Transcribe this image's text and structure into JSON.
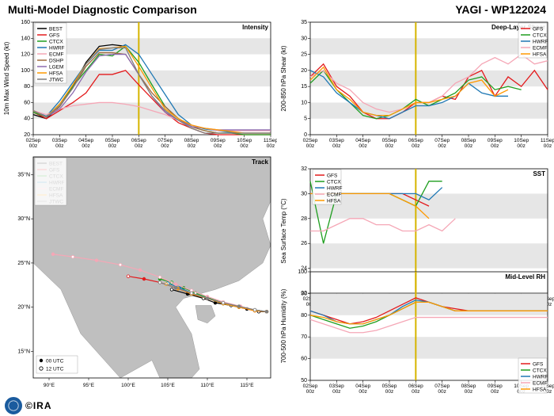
{
  "header": {
    "title": "Multi-Model Diagnostic Comparison",
    "storm": "YAGI - WP122024"
  },
  "colors": {
    "BEST": "#000000",
    "GFS": "#e31a1c",
    "CTCX": "#1f9e1f",
    "HWRF": "#1f78b4",
    "ECMF": "#f5a7b6",
    "DSHP": "#a06a3c",
    "LGEM": "#8c6bb1",
    "HFSA": "#ff9900",
    "JTWC": "#7f7f7f",
    "vline": "#d6b400",
    "grid": "#d0d0d0",
    "band": "#e6e6e6",
    "land": "#bfbfbf",
    "sea": "#ffffff"
  },
  "x": {
    "labels": [
      "02Sep\n00z",
      "03Sep\n00z",
      "04Sep\n00z",
      "05Sep\n00z",
      "06Sep\n00z",
      "07Sep\n00z",
      "08Sep\n00z",
      "09Sep\n00z",
      "10Sep\n00z",
      "11Sep\n00z"
    ],
    "vline_idx": 4.0
  },
  "intensity": {
    "title": "Intensity",
    "ylabel": "10m Max Wind Speed (kt)",
    "ylim": [
      20,
      160
    ],
    "ytick_step": 20,
    "legend": [
      "BEST",
      "GFS",
      "CTCX",
      "HWRF",
      "ECMF",
      "DSHP",
      "LGEM",
      "HFSA",
      "JTWC"
    ],
    "series": {
      "BEST": [
        45,
        40,
        55,
        80,
        110,
        130,
        132,
        130,
        null,
        null,
        null,
        null,
        null,
        null,
        null,
        null,
        null,
        null,
        null
      ],
      "GFS": [
        48,
        40,
        50,
        60,
        72,
        95,
        95,
        100,
        82,
        65,
        48,
        35,
        28,
        22,
        20,
        20,
        20,
        20,
        20
      ],
      "CTCX": [
        48,
        42,
        58,
        80,
        100,
        120,
        118,
        130,
        110,
        82,
        55,
        40,
        30,
        25,
        22,
        22,
        20,
        20,
        20
      ],
      "HWRF": [
        50,
        43,
        62,
        85,
        108,
        125,
        125,
        132,
        120,
        95,
        70,
        45,
        32,
        27,
        25,
        23,
        22,
        22,
        22
      ],
      "ECMF": [
        50,
        45,
        52,
        56,
        58,
        60,
        60,
        58,
        55,
        50,
        45,
        38,
        32,
        28,
        25,
        25,
        25,
        25,
        25
      ],
      "DSHP": [
        50,
        42,
        55,
        78,
        105,
        122,
        122,
        120,
        95,
        72,
        55,
        40,
        30,
        25,
        22,
        22,
        22,
        22,
        22
      ],
      "LGEM": [
        50,
        42,
        52,
        72,
        98,
        118,
        120,
        120,
        95,
        68,
        48,
        38,
        30,
        28,
        26,
        26,
        26,
        26,
        26
      ],
      "HFSA": [
        50,
        42,
        58,
        82,
        108,
        127,
        128,
        130,
        105,
        78,
        52,
        40,
        32,
        28,
        26,
        24,
        22,
        22,
        22
      ],
      "JTWC": [
        50,
        42,
        56,
        78,
        108,
        126,
        128,
        128,
        95,
        68,
        50,
        38,
        28,
        22,
        22,
        22,
        22,
        22,
        22
      ]
    }
  },
  "shear": {
    "title": "Deep-Layer Shear",
    "ylabel": "200-850 hPa Shear (kt)",
    "ylim": [
      0,
      35
    ],
    "yticks": [
      0,
      5,
      10,
      15,
      20,
      25,
      30,
      35
    ],
    "legend": [
      "GFS",
      "CTCX",
      "HWRF",
      "ECMF",
      "HFSA"
    ],
    "series": {
      "GFS": [
        18,
        22,
        15,
        12,
        7,
        5,
        5,
        7,
        10,
        10,
        12,
        11,
        18,
        20,
        12,
        18,
        15,
        20,
        14
      ],
      "CTCX": [
        16,
        20,
        14,
        10,
        6,
        5,
        6,
        8,
        11,
        9,
        11,
        13,
        17,
        18,
        14,
        15,
        14,
        null,
        null
      ],
      "HWRF": [
        20,
        18,
        13,
        10,
        7,
        6,
        5,
        7,
        9,
        9,
        10,
        12,
        16,
        13,
        12,
        12,
        null,
        null,
        null
      ],
      "ECMF": [
        18,
        20,
        16,
        14,
        10,
        8,
        7,
        8,
        10,
        10,
        12,
        16,
        18,
        22,
        24,
        22,
        25,
        22,
        23
      ],
      "HFSA": [
        17,
        21,
        14,
        11,
        7,
        6,
        6,
        8,
        10,
        10,
        11,
        12,
        16,
        17,
        12,
        14,
        null,
        null,
        null
      ]
    }
  },
  "sst": {
    "title": "SST",
    "ylabel": "Sea Surface Temp (°C)",
    "ylim": [
      22,
      32
    ],
    "yticks": [
      22,
      24,
      26,
      28,
      30,
      32
    ],
    "legend": [
      "GFS",
      "CTCX",
      "HWRF",
      "ECMF",
      "HFSA"
    ],
    "series": {
      "GFS": [
        30,
        30,
        30,
        30,
        30,
        30,
        30,
        30,
        29.5,
        29,
        null,
        null,
        null,
        null,
        null,
        null,
        null,
        null,
        null
      ],
      "CTCX": [
        31,
        26,
        30,
        30,
        30,
        30,
        30,
        29.5,
        29,
        31,
        31,
        null,
        null,
        null,
        null,
        null,
        null,
        null,
        null
      ],
      "HWRF": [
        30,
        30,
        30,
        30,
        30,
        30,
        30,
        30,
        30,
        29.5,
        30.5,
        null,
        null,
        null,
        null,
        null,
        null,
        null,
        null
      ],
      "ECMF": [
        27,
        27,
        27.5,
        28,
        28,
        27.5,
        27.5,
        27,
        27,
        27.5,
        27,
        28,
        null,
        null,
        null,
        null,
        null,
        null,
        null
      ],
      "HFSA": [
        30,
        30,
        30,
        30,
        30,
        30,
        30,
        29.5,
        29,
        28,
        null,
        null,
        null,
        null,
        null,
        null,
        null,
        null,
        null
      ]
    }
  },
  "rh": {
    "title": "Mid-Level RH",
    "ylabel": "700-500 hPa Humidity (%)",
    "ylim": [
      50,
      100
    ],
    "yticks": [
      50,
      60,
      70,
      80,
      90,
      100
    ],
    "legend": [
      "GFS",
      "CTCX",
      "HWRF",
      "ECMF",
      "HFSA"
    ],
    "series": {
      "GFS": [
        82,
        80,
        78,
        76,
        77,
        79,
        82,
        85,
        88,
        86,
        84,
        83,
        82,
        82,
        82,
        82,
        82,
        82,
        82
      ],
      "CTCX": [
        80,
        78,
        76,
        74,
        75,
        77,
        80,
        83,
        86,
        86,
        84,
        82,
        82,
        82,
        82,
        82,
        82,
        82,
        82
      ],
      "HWRF": [
        82,
        80,
        77,
        76,
        76,
        78,
        80,
        84,
        87,
        86,
        84,
        82,
        82,
        82,
        82,
        82,
        82,
        82,
        82
      ],
      "ECMF": [
        78,
        76,
        74,
        72,
        72,
        73,
        75,
        77,
        79,
        79,
        79,
        79,
        79,
        79,
        79,
        79,
        79,
        79,
        79
      ],
      "HFSA": [
        80,
        79,
        77,
        76,
        76,
        78,
        80,
        83,
        86,
        86,
        84,
        82,
        82,
        82,
        82,
        82,
        82,
        82,
        82
      ]
    }
  },
  "track": {
    "title": "Track",
    "xlabel": "",
    "ylabel": "",
    "xlim": [
      88,
      118
    ],
    "ylim": [
      12,
      37
    ],
    "xticks": [
      90,
      95,
      100,
      105,
      110,
      115
    ],
    "yticks": [
      15,
      20,
      25,
      30,
      35
    ],
    "legend": [
      "BEST",
      "GFS",
      "CTCX",
      "HWRF",
      "ECMF",
      "HFSA",
      "JTWC"
    ],
    "pt_legend": [
      "00 UTC",
      "12 UTC"
    ],
    "paths": {
      "BEST": [
        [
          117.5,
          19.5
        ],
        [
          116.5,
          19.5
        ],
        [
          115,
          19.8
        ],
        [
          113,
          20.2
        ],
        [
          111,
          20.5
        ],
        [
          109.5,
          21
        ],
        [
          107.5,
          21.5
        ],
        [
          105.5,
          22
        ]
      ],
      "GFS": [
        [
          117.5,
          19.5
        ],
        [
          116,
          19.6
        ],
        [
          114,
          20.0
        ],
        [
          112,
          20.4
        ],
        [
          110,
          21
        ],
        [
          108,
          21.5
        ],
        [
          106,
          22.2
        ],
        [
          104,
          22.8
        ],
        [
          102,
          23.2
        ],
        [
          100,
          23.5
        ]
      ],
      "CTCX": [
        [
          117.5,
          19.5
        ],
        [
          116,
          19.7
        ],
        [
          114,
          20.1
        ],
        [
          112,
          20.5
        ],
        [
          110,
          21.1
        ],
        [
          108.5,
          21.6
        ],
        [
          107,
          22.2
        ],
        [
          105.5,
          22.8
        ],
        [
          104,
          23.2
        ]
      ],
      "HWRF": [
        [
          117.5,
          19.5
        ],
        [
          116,
          19.7
        ],
        [
          114,
          20.0
        ],
        [
          112,
          20.4
        ],
        [
          110,
          21.0
        ],
        [
          108,
          21.6
        ],
        [
          106.5,
          22.2
        ],
        [
          105,
          22.7
        ]
      ],
      "ECMF": [
        [
          117.5,
          19.5
        ],
        [
          116,
          19.7
        ],
        [
          114.2,
          20.1
        ],
        [
          112,
          20.6
        ],
        [
          110,
          21.2
        ],
        [
          108,
          21.9
        ],
        [
          106,
          22.6
        ],
        [
          104,
          23.4
        ],
        [
          101.5,
          24.2
        ],
        [
          99,
          24.8
        ],
        [
          96,
          25.3
        ],
        [
          93,
          25.7
        ],
        [
          90.5,
          26.0
        ]
      ],
      "HFSA": [
        [
          117.5,
          19.5
        ],
        [
          116,
          19.6
        ],
        [
          114,
          20.0
        ],
        [
          112,
          20.4
        ],
        [
          110,
          21.0
        ],
        [
          108,
          21.5
        ],
        [
          106.3,
          22.1
        ],
        [
          104.8,
          22.6
        ]
      ],
      "JTWC": [
        [
          117.5,
          19.5
        ],
        [
          116,
          19.7
        ],
        [
          114,
          20.1
        ],
        [
          112,
          20.5
        ],
        [
          110,
          21.0
        ],
        [
          108,
          21.6
        ],
        [
          106,
          22.2
        ],
        [
          104,
          22.8
        ]
      ]
    }
  },
  "logos": {
    "cira": "©IRA"
  }
}
